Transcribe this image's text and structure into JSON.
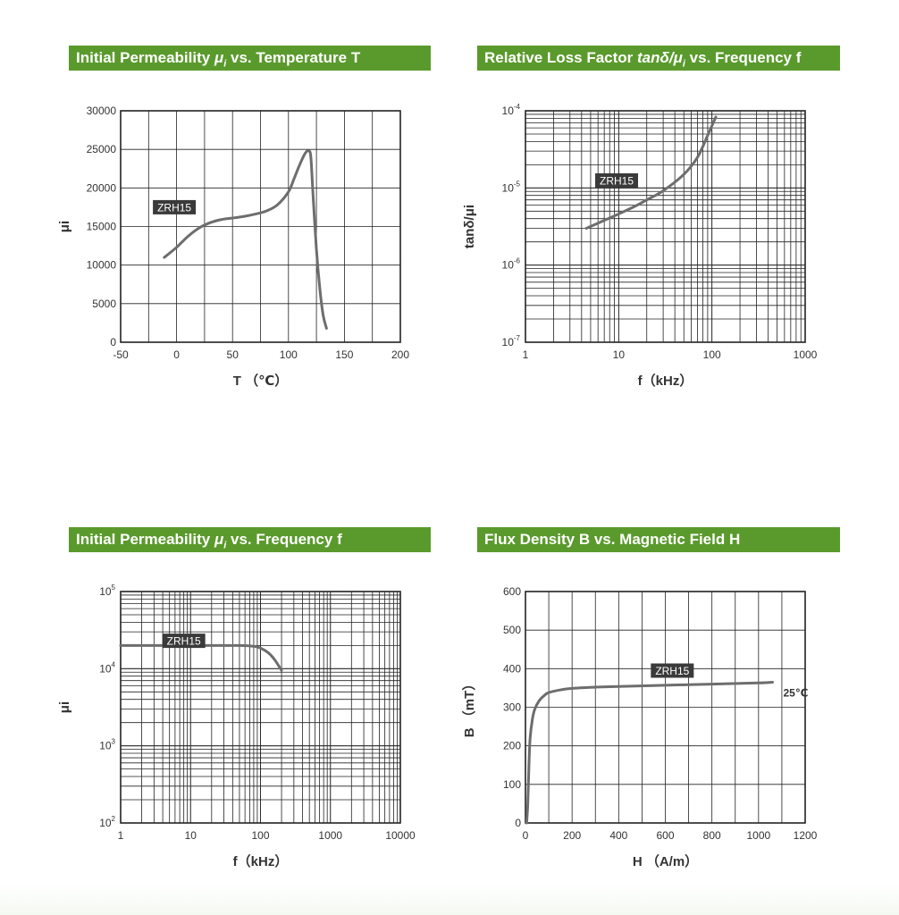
{
  "colors": {
    "title_bar_bg": "#5a9a2c",
    "title_bar_text": "#ffffff",
    "curve": "#6d6d6d",
    "grid": "#222222",
    "label_box_bg": "#3a3a3a",
    "label_box_text": "#ffffff"
  },
  "panels": [
    {
      "title_parts": [
        "Initial Permeability ",
        "μ",
        "i",
        " vs. Temperature ",
        "T"
      ]
    },
    {
      "title_parts": [
        "Relative Loss Factor ",
        "tanδ/μ",
        "i",
        " vs. Frequency ",
        "f"
      ]
    },
    {
      "title_parts": [
        "Initial Permeability ",
        "μ",
        "i",
        " vs. Frequency ",
        "f"
      ]
    },
    {
      "title_parts": [
        "Flux Density ",
        "B",
        "",
        " vs. Magnetic Field ",
        "H"
      ]
    }
  ],
  "chart_data": [
    {
      "type": "line",
      "xlabel": "T （℃）",
      "ylabel": "μi",
      "xscale": "linear",
      "yscale": "linear",
      "xlim": [
        -50,
        200
      ],
      "ylim": [
        0,
        30000
      ],
      "xticks": [
        -50,
        0,
        50,
        100,
        150,
        200
      ],
      "xtick_labels": [
        "-50",
        "0",
        "50",
        "100",
        "150",
        "200"
      ],
      "yticks": [
        0,
        5000,
        10000,
        15000,
        20000,
        25000,
        30000
      ],
      "ytick_labels": [
        "0",
        "5000",
        "10000",
        "15000",
        "20000",
        "25000",
        "30000"
      ],
      "grid": true,
      "series": [
        {
          "name": "ZRH15",
          "label_at": [
            -2,
            17500
          ],
          "x": [
            -11,
            0,
            10,
            20,
            30,
            40,
            50,
            60,
            70,
            80,
            90,
            100,
            105,
            110,
            115,
            118,
            120,
            122,
            125,
            128,
            131,
            134
          ],
          "y": [
            11000,
            12300,
            13700,
            14800,
            15500,
            15900,
            16100,
            16300,
            16600,
            17000,
            17800,
            19500,
            21200,
            23000,
            24500,
            24800,
            24000,
            19000,
            12000,
            7000,
            3500,
            1800
          ]
        }
      ]
    },
    {
      "type": "line",
      "xlabel": "f（kHz）",
      "ylabel": "tanδ/μi",
      "xscale": "log",
      "yscale": "log",
      "xlim": [
        1,
        1000
      ],
      "ylim": [
        1e-07,
        0.0001
      ],
      "xticks": [
        1,
        10,
        100,
        1000
      ],
      "xtick_labels": [
        "1",
        "10",
        "100",
        "1000"
      ],
      "yticks": [
        1e-07,
        1e-06,
        1e-05,
        0.0001
      ],
      "ytick_labels": [
        [
          "10",
          "-7"
        ],
        [
          "10",
          "-6"
        ],
        [
          "10",
          "-5"
        ],
        [
          "10",
          "-4"
        ]
      ],
      "grid": true,
      "series": [
        {
          "name": "ZRH15",
          "label_at": [
            9.5,
            1.25e-05
          ],
          "x": [
            4.5,
            7,
            10,
            15,
            20,
            30,
            50,
            70,
            90,
            110
          ],
          "y": [
            3e-06,
            3.8e-06,
            4.6e-06,
            5.8e-06,
            7e-06,
            9.2e-06,
            1.5e-05,
            2.5e-05,
            4.8e-05,
            8.3e-05
          ]
        }
      ]
    },
    {
      "type": "line",
      "xlabel": "f（kHz）",
      "ylabel": "μi",
      "xscale": "log",
      "yscale": "log",
      "xlim": [
        1,
        10000
      ],
      "ylim": [
        100,
        100000
      ],
      "xticks": [
        1,
        10,
        100,
        1000,
        10000
      ],
      "xtick_labels": [
        "1",
        "10",
        "100",
        "1000",
        "10000"
      ],
      "yticks": [
        100,
        1000,
        10000,
        100000
      ],
      "ytick_labels": [
        [
          "10",
          "2"
        ],
        [
          "10",
          "3"
        ],
        [
          "10",
          "4"
        ],
        [
          "10",
          "5"
        ]
      ],
      "grid": true,
      "series": [
        {
          "name": "ZRH15",
          "label_at": [
            8,
            23000
          ],
          "x": [
            1,
            10,
            50,
            80,
            100,
            130,
            160,
            200
          ],
          "y": [
            20000,
            20000,
            20000,
            19500,
            18500,
            16000,
            13000,
            9500
          ]
        }
      ]
    },
    {
      "type": "line",
      "xlabel": "H （A/m）",
      "ylabel": "B （mT）",
      "xscale": "linear",
      "yscale": "linear",
      "xlim": [
        0,
        1200
      ],
      "ylim": [
        0,
        600
      ],
      "xticks": [
        0,
        200,
        400,
        600,
        800,
        1000,
        1200
      ],
      "xtick_labels": [
        "0",
        "200",
        "400",
        "600",
        "800",
        "1000",
        "1200"
      ],
      "yticks": [
        0,
        100,
        200,
        300,
        400,
        500,
        600
      ],
      "ytick_labels": [
        "0",
        "100",
        "200",
        "300",
        "400",
        "500",
        "600"
      ],
      "grid": true,
      "annotation": "25℃",
      "series": [
        {
          "name": "ZRH15",
          "label_at": [
            630,
            395
          ],
          "x": [
            5,
            10,
            15,
            20,
            30,
            40,
            60,
            80,
            100,
            150,
            200,
            300,
            400,
            600,
            800,
            1000,
            1060
          ],
          "y": [
            0,
            50,
            150,
            220,
            270,
            295,
            318,
            330,
            338,
            345,
            349,
            352,
            354,
            357,
            360,
            363,
            365
          ]
        }
      ]
    }
  ]
}
